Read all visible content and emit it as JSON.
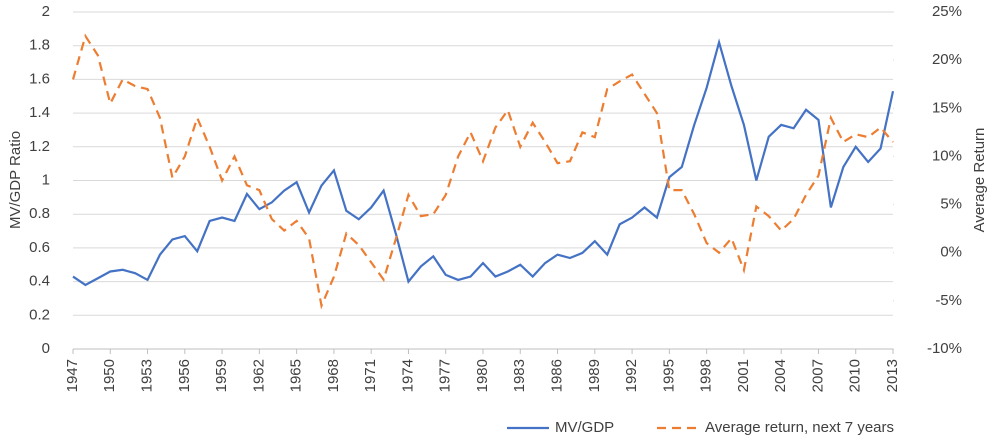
{
  "chart_data": {
    "type": "line",
    "x": [
      1947,
      1948,
      1949,
      1950,
      1951,
      1952,
      1953,
      1954,
      1955,
      1956,
      1957,
      1958,
      1959,
      1960,
      1961,
      1962,
      1963,
      1964,
      1965,
      1966,
      1967,
      1968,
      1969,
      1970,
      1971,
      1972,
      1973,
      1974,
      1975,
      1976,
      1977,
      1978,
      1979,
      1980,
      1981,
      1982,
      1983,
      1984,
      1985,
      1986,
      1987,
      1988,
      1989,
      1990,
      1991,
      1992,
      1993,
      1994,
      1995,
      1996,
      1997,
      1998,
      1999,
      2000,
      2001,
      2002,
      2003,
      2004,
      2005,
      2006,
      2007,
      2008,
      2009,
      2010,
      2011,
      2012,
      2013
    ],
    "xlim": [
      1947,
      2013
    ],
    "xticks": [
      1947,
      1950,
      1953,
      1956,
      1959,
      1962,
      1965,
      1968,
      1971,
      1974,
      1977,
      1980,
      1983,
      1986,
      1989,
      1992,
      1995,
      1998,
      2001,
      2004,
      2007,
      2010,
      2013
    ],
    "y_label": "MV/GDP Ratio",
    "y2_label": "Average Return",
    "ylim": [
      0,
      2
    ],
    "yticks": [
      0,
      0.2,
      0.4,
      0.6,
      0.8,
      1,
      1.2,
      1.4,
      1.6,
      1.8,
      2
    ],
    "y2lim": [
      -10,
      25
    ],
    "y2ticks": [
      {
        "value": -10,
        "label": "-10%"
      },
      {
        "value": -5,
        "label": "-5%"
      },
      {
        "value": 0,
        "label": "0%"
      },
      {
        "value": 5,
        "label": "5%"
      },
      {
        "value": 10,
        "label": "10%"
      },
      {
        "value": 15,
        "label": "15%"
      },
      {
        "value": 20,
        "label": "20%"
      },
      {
        "value": 25,
        "label": "25%"
      }
    ],
    "grid": true,
    "legend": "bottom",
    "series": [
      {
        "name": "MV/GDP",
        "color": "#4472c4",
        "dash": false,
        "values": [
          0.43,
          0.38,
          0.42,
          0.46,
          0.47,
          0.45,
          0.41,
          0.56,
          0.65,
          0.67,
          0.58,
          0.76,
          0.78,
          0.76,
          0.92,
          0.83,
          0.87,
          0.94,
          0.99,
          0.81,
          0.97,
          1.06,
          0.82,
          0.77,
          0.84,
          0.94,
          0.68,
          0.4,
          0.49,
          0.55,
          0.44,
          0.41,
          0.43,
          0.51,
          0.43,
          0.46,
          0.5,
          0.43,
          0.51,
          0.56,
          0.54,
          0.57,
          0.64,
          0.56,
          0.74,
          0.78,
          0.84,
          0.78,
          1.02,
          1.08,
          1.33,
          1.55,
          1.82,
          1.56,
          1.33,
          1.0,
          1.26,
          1.33,
          1.31,
          1.42,
          1.36,
          0.84,
          1.08,
          1.2,
          1.11,
          1.19,
          1.53
        ]
      },
      {
        "name": "Average return, next 7 years",
        "color": "#ed7d31",
        "dash": true,
        "axis": "y2",
        "values": [
          18,
          22.5,
          20.5,
          15.5,
          18,
          17.3,
          17,
          14,
          7.8,
          10,
          14,
          11,
          7.5,
          10,
          7,
          6.5,
          3.5,
          2.3,
          3.3,
          1.5,
          -5.5,
          -2.5,
          2,
          0.8,
          -1,
          -2.8,
          1.5,
          6,
          3.8,
          4,
          6,
          10,
          12.5,
          9.5,
          13,
          14.8,
          11,
          13.5,
          11.5,
          9.3,
          9.5,
          12.5,
          12,
          17,
          17.8,
          18.5,
          16.5,
          14.5,
          6.5,
          6.5,
          4,
          1,
          0,
          1.5,
          -1.8,
          4.8,
          3.8,
          2.3,
          3.5,
          6,
          8,
          14,
          11.5,
          12.3,
          12,
          13,
          11.5
        ]
      }
    ]
  }
}
